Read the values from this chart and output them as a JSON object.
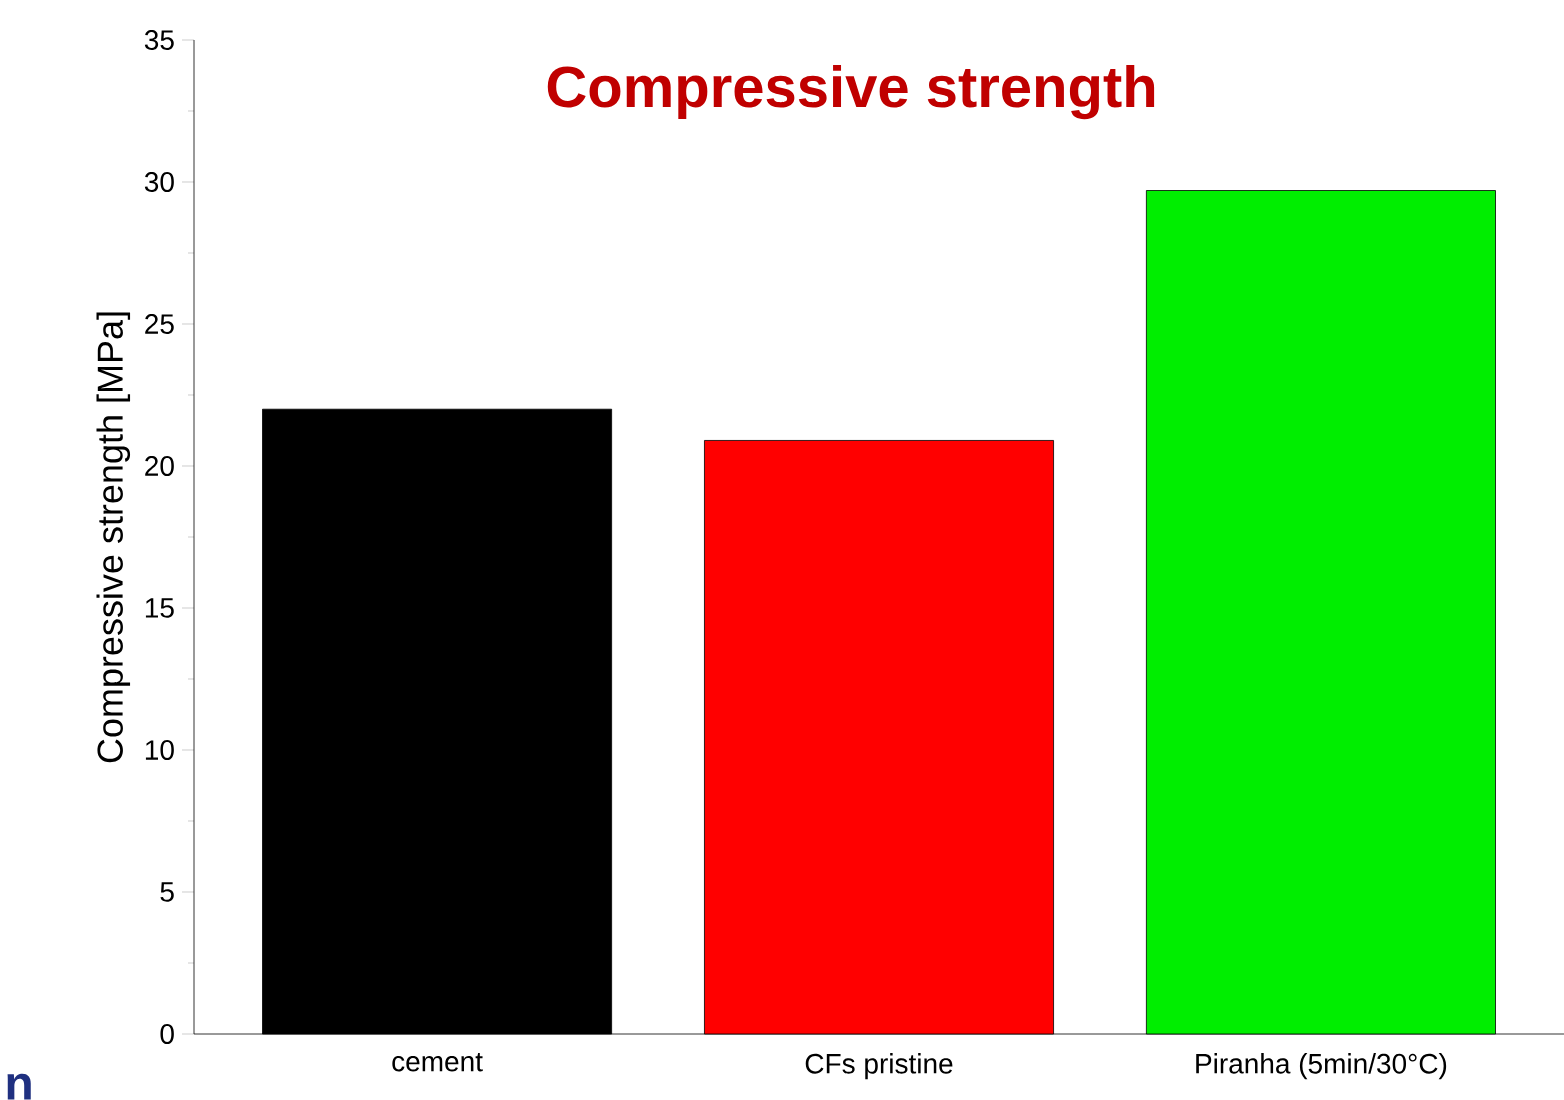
{
  "chart_data": {
    "type": "bar",
    "title": "Compressive strength",
    "ylabel": "Compressive strength [MPa]",
    "categories": [
      "cement",
      "CFs pristine",
      "Piranha (5min/30°C)"
    ],
    "values": [
      22.0,
      20.9,
      29.7
    ],
    "colors": [
      "#000000",
      "#ff0000",
      "#00ee00"
    ],
    "ylim": [
      0,
      35
    ],
    "yticks": [
      0,
      5,
      10,
      15,
      20,
      25,
      30,
      35
    ],
    "annotations": [
      "n"
    ]
  }
}
